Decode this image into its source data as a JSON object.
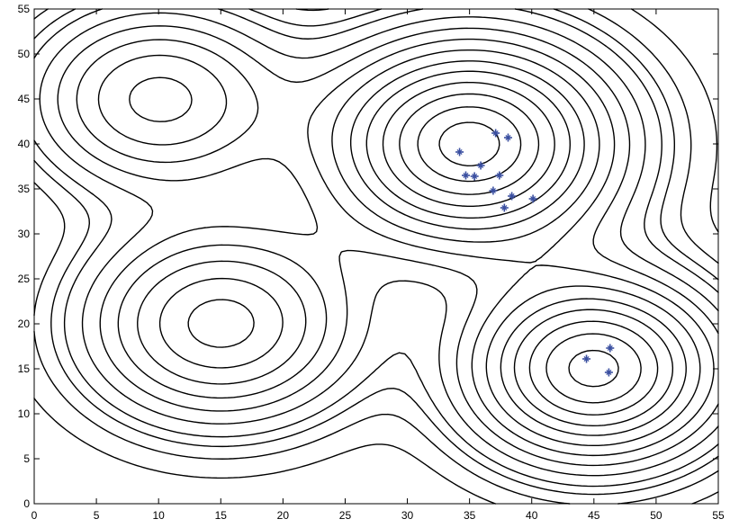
{
  "chart_data": {
    "type": "contour",
    "title": "",
    "xlabel": "",
    "ylabel": "",
    "xlim": [
      0,
      55
    ],
    "ylim": [
      0,
      55
    ],
    "x_ticks": [
      "0",
      "5",
      "10",
      "15",
      "20",
      "25",
      "30",
      "35",
      "40",
      "45",
      "50",
      "55"
    ],
    "y_ticks": [
      "0",
      "5",
      "10",
      "15",
      "20",
      "25",
      "30",
      "35",
      "40",
      "45",
      "50",
      "55"
    ],
    "grid": false,
    "legend": "none",
    "colors": {
      "contour": "#000000",
      "marker": "#3a4fa0"
    },
    "peaks": [
      {
        "x": 35,
        "y": 40,
        "amplitude": 1.0,
        "sigma": 7.5
      },
      {
        "x": 45,
        "y": 15,
        "amplitude": 0.9,
        "sigma": 6.5
      },
      {
        "x": 10,
        "y": 45,
        "amplitude": 0.5,
        "sigma": 6.5
      },
      {
        "x": 15,
        "y": 20,
        "amplitude": 0.6,
        "sigma": 7.0
      }
    ],
    "contour_levels": [
      0.03,
      0.06,
      0.09,
      0.12,
      0.17,
      0.23,
      0.3,
      0.38,
      0.47,
      0.56,
      0.66,
      0.76,
      0.86,
      0.95
    ],
    "points": [
      {
        "x": 34.2,
        "y": 39.1
      },
      {
        "x": 37.1,
        "y": 41.2
      },
      {
        "x": 38.1,
        "y": 40.7
      },
      {
        "x": 35.9,
        "y": 37.6
      },
      {
        "x": 34.7,
        "y": 36.5
      },
      {
        "x": 35.4,
        "y": 36.4
      },
      {
        "x": 37.4,
        "y": 36.5
      },
      {
        "x": 36.9,
        "y": 34.8
      },
      {
        "x": 38.4,
        "y": 34.2
      },
      {
        "x": 40.1,
        "y": 33.9
      },
      {
        "x": 37.8,
        "y": 32.9
      },
      {
        "x": 44.4,
        "y": 16.1
      },
      {
        "x": 46.3,
        "y": 17.3
      },
      {
        "x": 46.2,
        "y": 14.6
      }
    ]
  }
}
